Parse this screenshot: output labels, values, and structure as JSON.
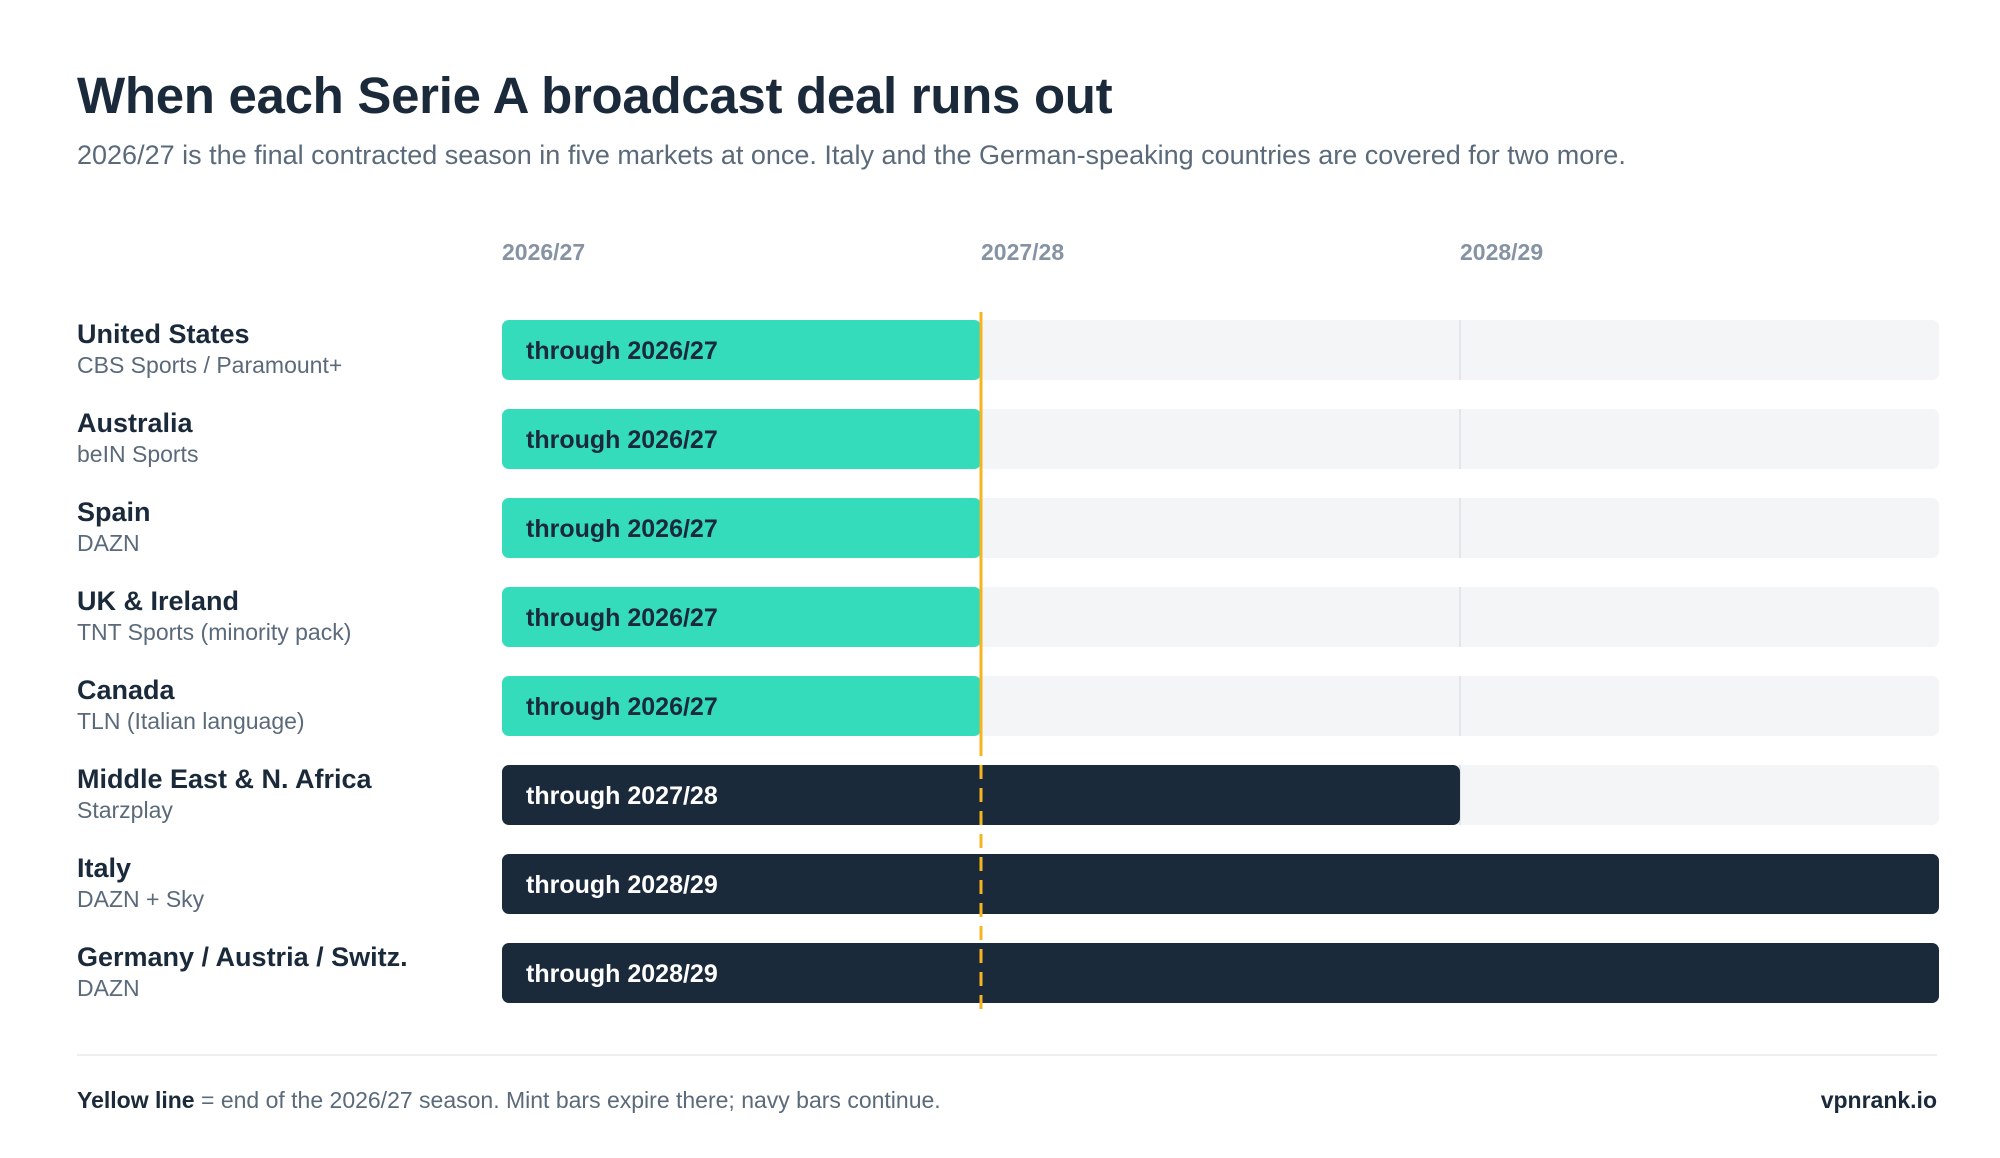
{
  "header": {
    "title": "When each Serie A broadcast deal runs out",
    "subtitle": "2026/27 is the final contracted season in five markets at once. Italy and the German-speaking countries are covered for two more."
  },
  "chart_data": {
    "type": "bar",
    "orientation": "horizontal",
    "x_ticks": [
      "2026/27",
      "2027/28",
      "2028/29"
    ],
    "marker": {
      "season": "2026/27",
      "color": "#f5b51d"
    },
    "colors": {
      "expiring": "#34dcbb",
      "continuing": "#1b2a3a",
      "track": "#f3f5f7"
    },
    "rows": [
      {
        "market": "United States",
        "broadcaster": "CBS Sports / Paramount+",
        "seasons": 1,
        "label": "through 2026/27",
        "status": "expiring"
      },
      {
        "market": "Australia",
        "broadcaster": "beIN Sports",
        "seasons": 1,
        "label": "through 2026/27",
        "status": "expiring"
      },
      {
        "market": "Spain",
        "broadcaster": "DAZN",
        "seasons": 1,
        "label": "through 2026/27",
        "status": "expiring"
      },
      {
        "market": "UK & Ireland",
        "broadcaster": "TNT Sports (minority pack)",
        "seasons": 1,
        "label": "through 2026/27",
        "status": "expiring"
      },
      {
        "market": "Canada",
        "broadcaster": "TLN (Italian language)",
        "seasons": 1,
        "label": "through 2026/27",
        "status": "expiring"
      },
      {
        "market": "Middle East & N. Africa",
        "broadcaster": "Starzplay",
        "seasons": 2,
        "label": "through 2027/28",
        "status": "continuing"
      },
      {
        "market": "Italy",
        "broadcaster": "DAZN + Sky",
        "seasons": 3,
        "label": "through 2028/29",
        "status": "continuing"
      },
      {
        "market": "Germany / Austria / Switz.",
        "broadcaster": "DAZN",
        "seasons": 3,
        "label": "through 2028/29",
        "status": "continuing"
      }
    ]
  },
  "footer": {
    "note_bold": "Yellow line",
    "note_rest": " = end of the 2026/27 season. Mint bars expire there; navy bars continue.",
    "brand": "vpnrank.io"
  }
}
